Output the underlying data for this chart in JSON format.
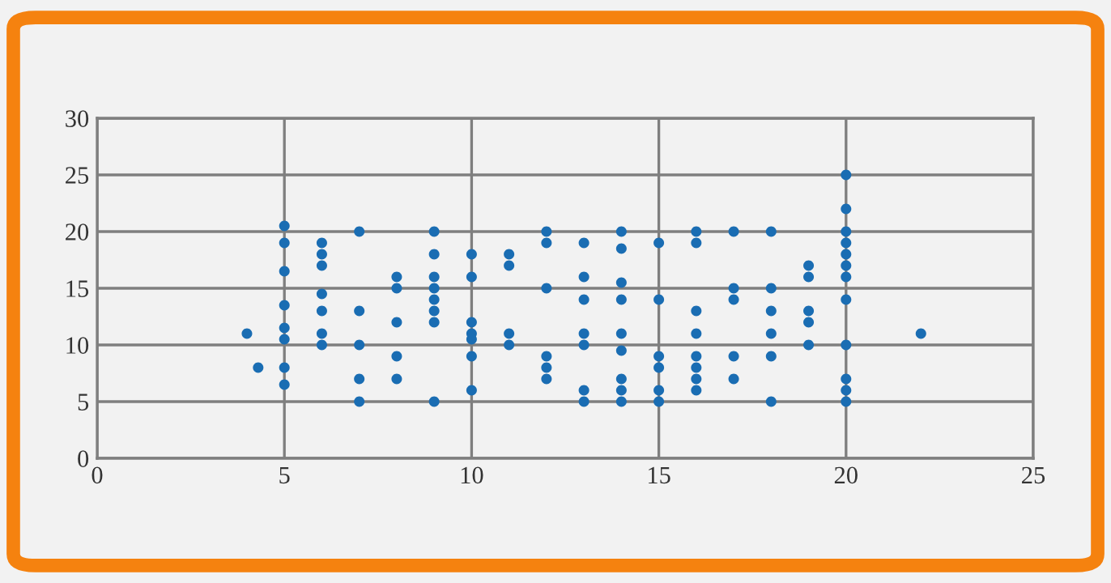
{
  "chart_data": {
    "type": "scatter",
    "marker": "circle",
    "grid": true,
    "xlim": [
      0,
      25
    ],
    "xticks": [
      0,
      5,
      10,
      15,
      20,
      25
    ],
    "ylim": [
      0,
      30
    ],
    "yticks": [
      0,
      5,
      10,
      15,
      20,
      25,
      30
    ],
    "series": [
      {
        "color": "#1a6db3",
        "x": [
          4,
          4.3,
          5,
          5,
          5,
          5,
          5,
          5,
          5,
          5,
          6,
          6,
          6,
          6,
          6,
          6,
          6,
          7,
          7,
          7,
          7,
          7,
          8,
          8,
          8,
          8,
          8,
          9,
          9,
          9,
          9,
          9,
          9,
          9,
          9,
          10,
          10,
          10,
          10,
          10,
          10,
          10,
          11,
          11,
          11,
          11,
          12,
          12,
          12,
          12,
          12,
          12,
          13,
          13,
          13,
          13,
          13,
          13,
          13,
          14,
          14,
          14,
          14,
          14,
          14,
          14,
          14,
          14,
          15,
          15,
          15,
          15,
          15,
          15,
          16,
          16,
          16,
          16,
          16,
          16,
          16,
          16,
          17,
          17,
          17,
          17,
          17,
          18,
          18,
          18,
          18,
          18,
          18,
          19,
          19,
          19,
          19,
          19,
          20,
          20,
          20,
          20,
          20,
          20,
          20,
          20,
          20,
          20,
          20,
          20,
          22
        ],
        "values": [
          11,
          8,
          20.5,
          19,
          16.5,
          13.5,
          11.5,
          10.5,
          8,
          6.5,
          19,
          18,
          17,
          14.5,
          13,
          11,
          10,
          20,
          13,
          10,
          7,
          5,
          16,
          15,
          12,
          9,
          7,
          20,
          18,
          16,
          15,
          14,
          13,
          12,
          5,
          18,
          16,
          12,
          11,
          10.5,
          9,
          6,
          18,
          17,
          11,
          10,
          20,
          19,
          15,
          9,
          8,
          7,
          19,
          16,
          14,
          11,
          10,
          6,
          5,
          20,
          18.5,
          15.5,
          14,
          11,
          9.5,
          7,
          6,
          5,
          19,
          14,
          9,
          8,
          6,
          5,
          20,
          19,
          13,
          11,
          9,
          8,
          7,
          6,
          20,
          15,
          14,
          9,
          7,
          20,
          15,
          13,
          11,
          9,
          5,
          17,
          16,
          13,
          12,
          10,
          25,
          22,
          20,
          19,
          18,
          17,
          16,
          14,
          10,
          7,
          6,
          5,
          11
        ]
      }
    ]
  }
}
